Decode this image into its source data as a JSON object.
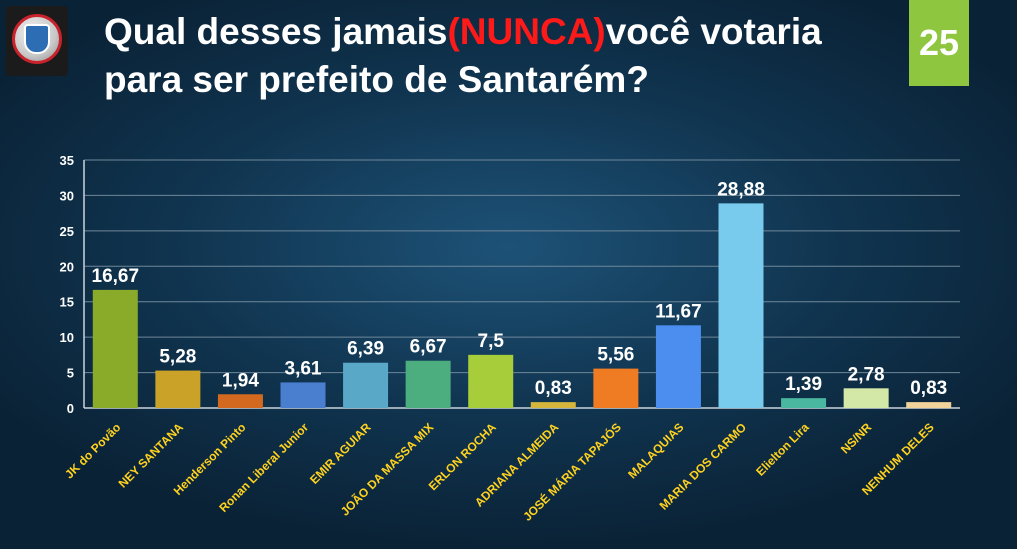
{
  "header": {
    "title_part1": "Qual desses jamais",
    "title_highlight": "(NUNCA)",
    "title_part2": "você votaria",
    "title_line2": "para ser prefeito de Santarém?",
    "slide_number": "25"
  },
  "chart_data": {
    "type": "bar",
    "title": "",
    "xlabel": "",
    "ylabel": "",
    "ylim": [
      0,
      35
    ],
    "yticks": [
      "0",
      "5",
      "10",
      "15",
      "20",
      "25",
      "30",
      "35"
    ],
    "grid": true,
    "categories": [
      "JK do Povão",
      "NEY SANTANA",
      "Henderson Pinto",
      "Ronan Liberal Junior",
      "EMIR AGUIAR",
      "JOÃO DA MASSA MIX",
      "ERLON ROCHA",
      "ADRIANA  ALMEIDA",
      "JOSÉ MÁRIA TAPAJÓS",
      "MALAQUIAS",
      "MARIA DOS CARMO",
      "Elielton Lira",
      "NS/NR",
      "NENHUM DELES"
    ],
    "values": [
      16.67,
      5.28,
      1.94,
      3.61,
      6.39,
      6.67,
      7.5,
      0.83,
      5.56,
      11.67,
      28.88,
      1.39,
      2.78,
      0.83
    ],
    "data_labels": [
      "16,67",
      "5,28",
      "1,94",
      "3,61",
      "6,39",
      "6,67",
      "7,5",
      "0,83",
      "5,56",
      "11,67",
      "28,88",
      "1,39",
      "2,78",
      "0,83"
    ],
    "colors": [
      "#8aab2a",
      "#c9a227",
      "#d2691e",
      "#4a7fd0",
      "#5aa8c8",
      "#4cae7e",
      "#a8cd3a",
      "#d6b53c",
      "#ef7b22",
      "#4b8ef0",
      "#78cbed",
      "#4ab7a0",
      "#d3e7a6",
      "#efd39a"
    ],
    "label_color": "#ffd21f"
  }
}
